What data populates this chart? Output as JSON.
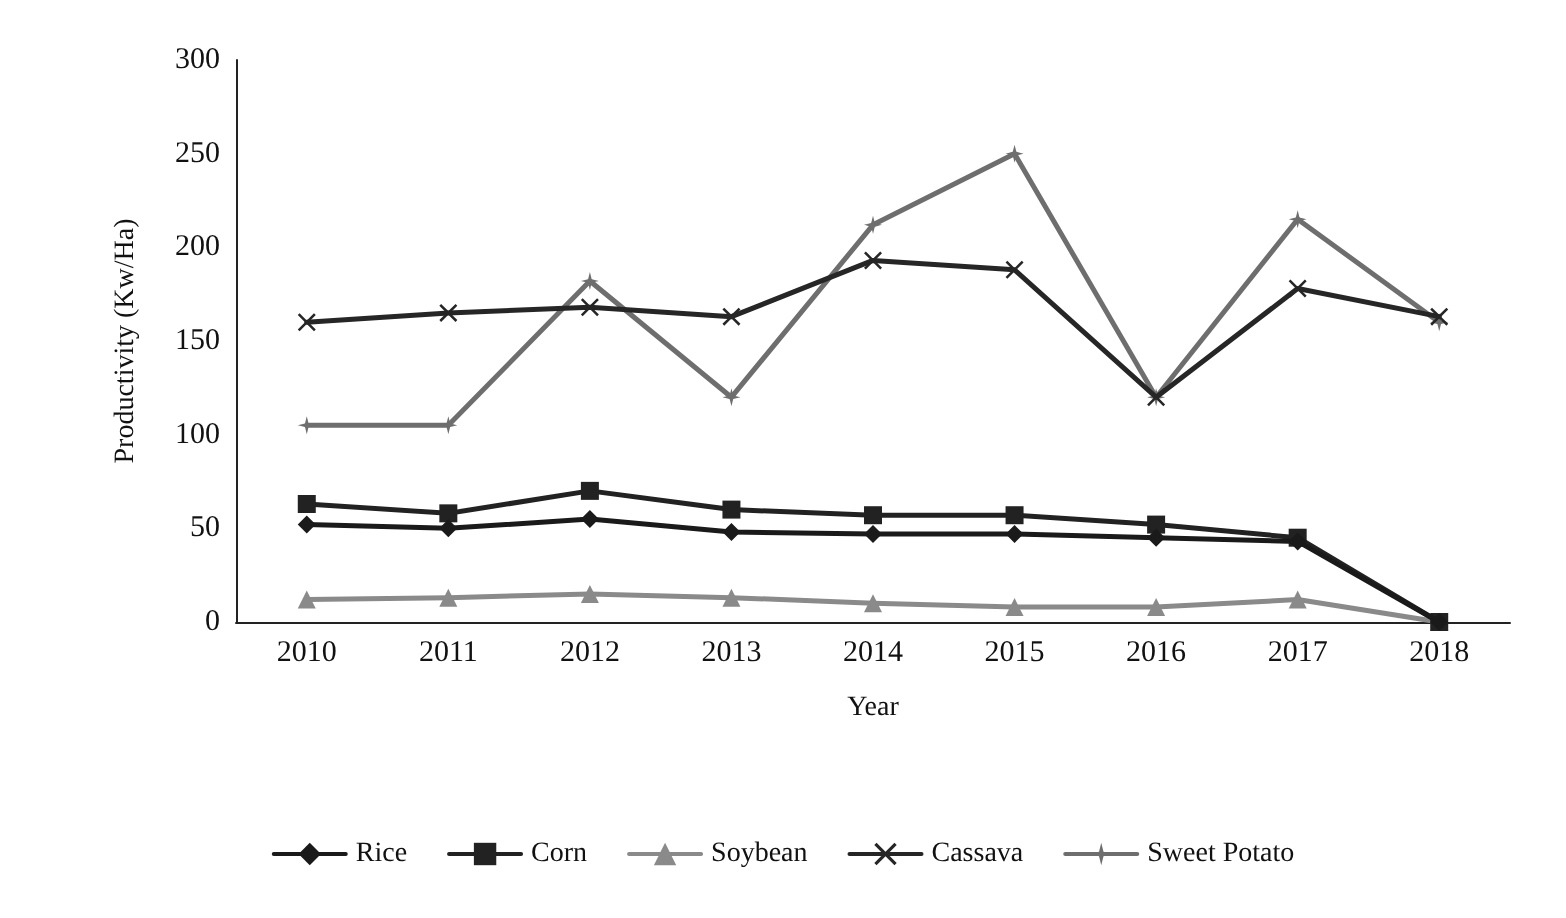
{
  "chart_data": {
    "type": "line",
    "xlabel": "Year",
    "ylabel": "Productivity (Kw/Ha)",
    "categories": [
      "2010",
      "2011",
      "2012",
      "2013",
      "2014",
      "2015",
      "2016",
      "2017",
      "2018"
    ],
    "ylim": [
      0,
      300
    ],
    "yticks": [
      0,
      50,
      100,
      150,
      200,
      250,
      300
    ],
    "grid": false,
    "legend": "bottom",
    "series": [
      {
        "name": "Rice",
        "color": "#1a1a1a",
        "marker": "diamond",
        "values": [
          52,
          50,
          55,
          48,
          47,
          47,
          45,
          43,
          0
        ]
      },
      {
        "name": "Corn",
        "color": "#222222",
        "marker": "square",
        "values": [
          63,
          58,
          70,
          60,
          57,
          57,
          52,
          45,
          0
        ]
      },
      {
        "name": "Soybean",
        "color": "#8a8a8a",
        "marker": "triangle",
        "values": [
          12,
          13,
          15,
          13,
          10,
          8,
          8,
          12,
          0
        ]
      },
      {
        "name": "Cassava",
        "color": "#262626",
        "marker": "cross",
        "values": [
          160,
          165,
          168,
          163,
          193,
          188,
          120,
          178,
          163
        ]
      },
      {
        "name": "Sweet Potato",
        "color": "#6e6e6e",
        "marker": "star",
        "values": [
          105,
          105,
          182,
          120,
          212,
          250,
          120,
          215,
          160
        ]
      }
    ]
  }
}
